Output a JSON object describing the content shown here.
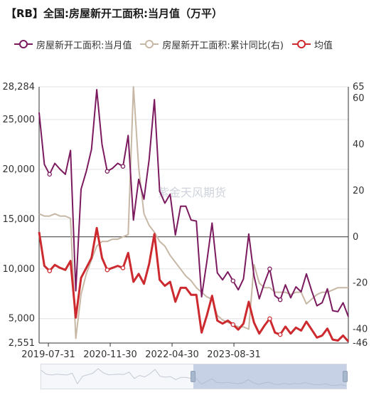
{
  "title": "【RB】全国:房屋新开工面积:当月值（万平）",
  "legend": [
    {
      "label": "房屋新开工面积:当月值",
      "color": "#7b1a5e",
      "marker": "circle"
    },
    {
      "label": "房屋新开工面积:累计同比(右)",
      "color": "#c7b8a6",
      "marker": "circle"
    },
    {
      "label": "均值",
      "color": "#cc2a2f",
      "marker": "circle"
    }
  ],
  "watermark": "紫金天风期货",
  "chart_data": {
    "type": "line",
    "x_ticks": [
      "2019-07-31",
      "2020-11-30",
      "2022-04-30",
      "2023-08-31"
    ],
    "y_left_ticks": [
      "2,551",
      "5,000",
      "10,000",
      "15,000",
      "20,000",
      "25,000",
      "28,284"
    ],
    "y_right_ticks": [
      "-46",
      "-40",
      "-20",
      "0",
      "20",
      "40",
      "60",
      "65"
    ],
    "y_left_range": [
      2551,
      28284
    ],
    "y_right_range": [
      -46,
      65
    ],
    "series": [
      {
        "name": "房屋新开工面积:当月值",
        "axis": "left",
        "color": "#7b1a5e",
        "values": [
          25700,
          20500,
          19500,
          20600,
          20000,
          19500,
          21900,
          7800,
          18000,
          19800,
          22000,
          28000,
          22500,
          19800,
          20100,
          20600,
          20300,
          23400,
          14900,
          19000,
          17000,
          21000,
          27000,
          17800,
          16600,
          17500,
          13400,
          16300,
          16300,
          14900,
          14800,
          7200,
          10700,
          14600,
          9600,
          8900,
          9700,
          8800,
          7900,
          9000,
          13500,
          9300,
          7000,
          8600,
          10000,
          7300,
          6900,
          8400,
          7100,
          8200,
          7700,
          9500,
          7800,
          6300,
          6600,
          8000,
          5800,
          5700,
          6600,
          5200
        ]
      },
      {
        "name": "房屋新开工面积:累计同比(右)",
        "axis": "right",
        "color": "#c7b8a6",
        "values": [
          10,
          9,
          9,
          10,
          9,
          9,
          8,
          -44,
          -25,
          -16,
          -10,
          -4,
          -2,
          -2,
          -1,
          -1,
          0,
          1,
          65,
          30,
          10,
          5,
          2,
          -2,
          -4,
          -8,
          -11,
          -14,
          -17,
          -19,
          -22,
          -24,
          -26,
          -27,
          -34,
          -36,
          -37,
          -38,
          -39,
          -39,
          -40,
          -12,
          -20,
          -22,
          -22,
          -24,
          -24,
          -24,
          -25,
          -24,
          -24,
          -29,
          -27,
          -25,
          -24,
          -24,
          -23,
          -22,
          -22,
          -22
        ]
      },
      {
        "name": "均值",
        "axis": "left",
        "color": "#cc2a2f",
        "values": [
          13700,
          10300,
          9800,
          10400,
          10100,
          9900,
          10800,
          5100,
          9100,
          10100,
          11100,
          14100,
          11100,
          9900,
          10100,
          10300,
          10100,
          11600,
          8700,
          9500,
          8500,
          10500,
          13500,
          8900,
          8300,
          8700,
          6700,
          8100,
          8100,
          7400,
          7400,
          3600,
          5300,
          7300,
          4800,
          4500,
          4800,
          4400,
          3900,
          4500,
          6700,
          4600,
          3500,
          4300,
          5000,
          3600,
          3400,
          4200,
          3500,
          4100,
          3800,
          4700,
          3900,
          3100,
          3300,
          4000,
          2900,
          2800,
          3300,
          2700
        ]
      }
    ],
    "highlight_points": {
      "left": [
        2,
        13,
        16,
        37,
        44,
        46
      ],
      "mean": [
        2,
        13,
        16,
        37,
        44,
        46
      ]
    }
  }
}
